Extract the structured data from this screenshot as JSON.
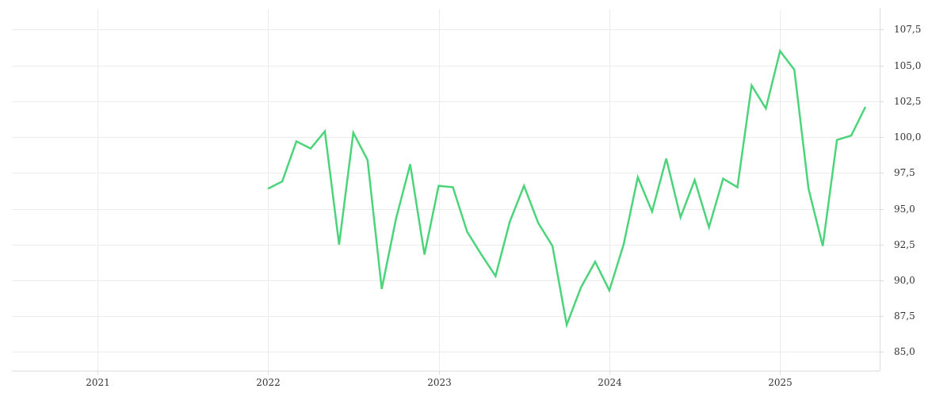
{
  "chart_data": {
    "type": "line",
    "title": "",
    "xlabel": "",
    "ylabel": "",
    "x_ticks": [
      "2021",
      "2022",
      "2023",
      "2024",
      "2025"
    ],
    "y_ticks": [
      "85,0",
      "87,5",
      "90,0",
      "92,5",
      "95,0",
      "97,5",
      "100,0",
      "102,5",
      "105,0",
      "107,5"
    ],
    "y_tick_values": [
      85,
      87.5,
      90,
      92.5,
      95,
      97.5,
      100,
      102.5,
      105,
      107.5
    ],
    "xlim": [
      "2020-07",
      "2025-08"
    ],
    "ylim": [
      83.7,
      108.9
    ],
    "y_axis_position": "right",
    "grid": true,
    "line_color": "#4cd47a",
    "series": [
      {
        "x": [
          "2022-01",
          "2022-02",
          "2022-03",
          "2022-04",
          "2022-05",
          "2022-06",
          "2022-07",
          "2022-08",
          "2022-09",
          "2022-10",
          "2022-11",
          "2022-12",
          "2023-01",
          "2023-02",
          "2023-03",
          "2023-04",
          "2023-05",
          "2023-06",
          "2023-07",
          "2023-08",
          "2023-09",
          "2023-10",
          "2023-11",
          "2023-12",
          "2024-01",
          "2024-02",
          "2024-03",
          "2024-04",
          "2024-05",
          "2024-06",
          "2024-07",
          "2024-08",
          "2024-09",
          "2024-10",
          "2024-11",
          "2024-12",
          "2025-01",
          "2025-02",
          "2025-03",
          "2025-04",
          "2025-05",
          "2025-06",
          "2025-07"
        ],
        "values": [
          96.4,
          96.9,
          99.7,
          99.2,
          100.4,
          92.5,
          100.3,
          98.4,
          89.4,
          94.3,
          98.1,
          91.8,
          96.6,
          96.5,
          93.4,
          91.8,
          90.3,
          94.1,
          96.6,
          94.0,
          92.4,
          86.9,
          89.5,
          91.3,
          89.3,
          92.5,
          97.2,
          94.8,
          98.5,
          94.4,
          97.0,
          93.7,
          97.1,
          96.5,
          103.6,
          102.0,
          106.0,
          104.7,
          96.4,
          92.4,
          99.8,
          100.1,
          102.1
        ]
      }
    ]
  }
}
